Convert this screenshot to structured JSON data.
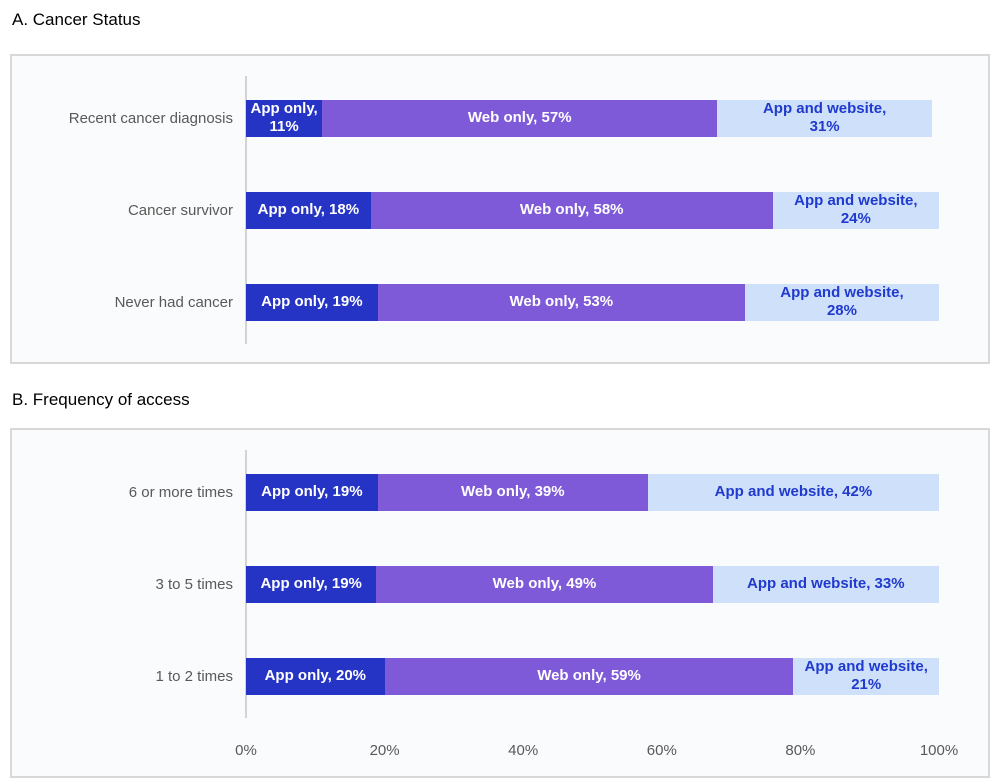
{
  "colors": {
    "app_only": "#2634c6",
    "web_only": "#7e59d8",
    "app_and_website": "#cfe0fa",
    "text_on_dark": "#ffffff",
    "text_on_light": "#1f3acd",
    "panel_border": "#d8d8d8",
    "panel_background": "#fafbfc",
    "axis_line": "#d3d3d3",
    "gray_text": "#595959"
  },
  "chart_data": [
    {
      "type": "bar",
      "title": "A. Cancer Status",
      "orientation": "horizontal",
      "stacked": true,
      "xlim": [
        0,
        100
      ],
      "legend": "none",
      "grid": false,
      "series_names": [
        "App only",
        "Web only",
        "App and website"
      ],
      "categories": [
        "Recent cancer diagnosis",
        "Cancer survivor",
        "Never had cancer"
      ],
      "show_axis": false,
      "rows": [
        {
          "category": "Recent cancer diagnosis",
          "segments": [
            {
              "series": "App only",
              "value": 11,
              "line1": "App only,",
              "line2": "11%"
            },
            {
              "series": "Web only",
              "value": 57,
              "line1": "Web only, 57%",
              "line2": ""
            },
            {
              "series": "App and website",
              "value": 31,
              "line1": "App and website,",
              "line2": "31%"
            }
          ]
        },
        {
          "category": "Cancer survivor",
          "segments": [
            {
              "series": "App only",
              "value": 18,
              "line1": "App only, 18%",
              "line2": ""
            },
            {
              "series": "Web only",
              "value": 58,
              "line1": "Web only, 58%",
              "line2": ""
            },
            {
              "series": "App and website",
              "value": 24,
              "line1": "App and website,",
              "line2": "24%"
            }
          ]
        },
        {
          "category": "Never had cancer",
          "segments": [
            {
              "series": "App only",
              "value": 19,
              "line1": "App only, 19%",
              "line2": ""
            },
            {
              "series": "Web only",
              "value": 53,
              "line1": "Web only, 53%",
              "line2": ""
            },
            {
              "series": "App and website",
              "value": 28,
              "line1": "App and website,",
              "line2": "28%"
            }
          ]
        }
      ]
    },
    {
      "type": "bar",
      "title": "B. Frequency of access",
      "orientation": "horizontal",
      "stacked": true,
      "xlim": [
        0,
        100
      ],
      "legend": "none",
      "grid": false,
      "series_names": [
        "App only",
        "Web only",
        "App and website"
      ],
      "categories": [
        "6 or more times",
        "3 to 5 times",
        "1 to 2 times"
      ],
      "show_axis": true,
      "axis_ticks": [
        {
          "label": "0%",
          "value": 0
        },
        {
          "label": "20%",
          "value": 20
        },
        {
          "label": "40%",
          "value": 40
        },
        {
          "label": "60%",
          "value": 60
        },
        {
          "label": "80%",
          "value": 80
        },
        {
          "label": "100%",
          "value": 100
        }
      ],
      "rows": [
        {
          "category": "6 or more times",
          "segments": [
            {
              "series": "App only",
              "value": 19,
              "line1": "App only, 19%",
              "line2": ""
            },
            {
              "series": "Web only",
              "value": 39,
              "line1": "Web only, 39%",
              "line2": ""
            },
            {
              "series": "App and website",
              "value": 42,
              "line1": "App and website, 42%",
              "line2": ""
            }
          ]
        },
        {
          "category": "3 to 5 times",
          "segments": [
            {
              "series": "App only",
              "value": 19,
              "line1": "App only, 19%",
              "line2": ""
            },
            {
              "series": "Web only",
              "value": 49,
              "line1": "Web only, 49%",
              "line2": ""
            },
            {
              "series": "App and website",
              "value": 33,
              "line1": "App and website, 33%",
              "line2": ""
            }
          ]
        },
        {
          "category": "1 to 2 times",
          "segments": [
            {
              "series": "App only",
              "value": 20,
              "line1": "App only, 20%",
              "line2": ""
            },
            {
              "series": "Web only",
              "value": 59,
              "line1": "Web only, 59%",
              "line2": ""
            },
            {
              "series": "App and website",
              "value": 21,
              "line1": "App and website,",
              "line2": "21%"
            }
          ]
        }
      ]
    }
  ]
}
